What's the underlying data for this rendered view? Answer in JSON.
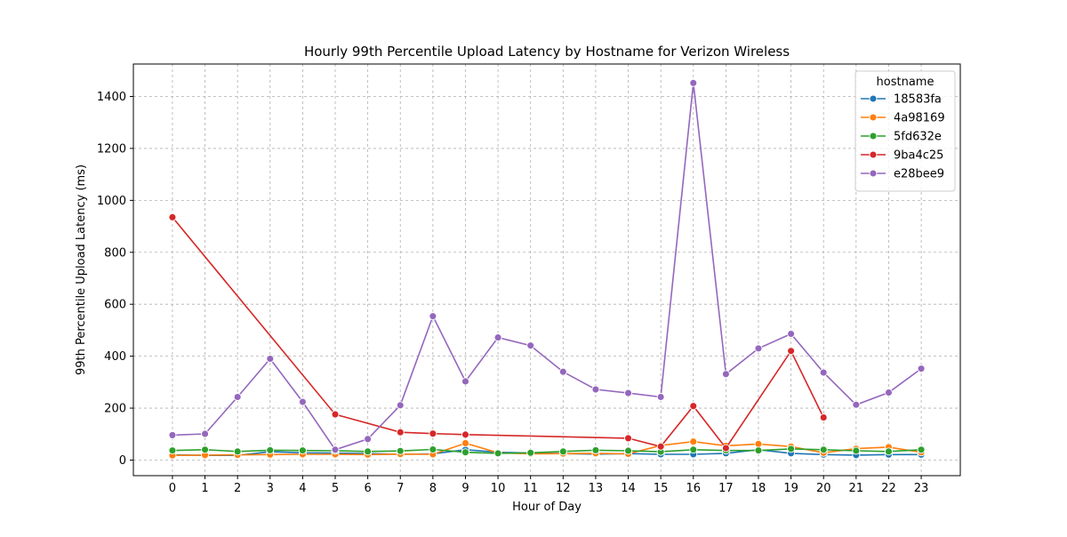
{
  "chart_data": {
    "type": "line",
    "title": "Hourly 99th Percentile Upload Latency by Hostname for Verizon Wireless",
    "xlabel": "Hour of Day",
    "ylabel": "99th Percentile Upload Latency (ms)",
    "x": [
      0,
      1,
      2,
      3,
      4,
      5,
      6,
      7,
      8,
      9,
      10,
      11,
      12,
      13,
      14,
      15,
      16,
      17,
      18,
      19,
      20,
      21,
      22,
      23
    ],
    "xlim": [
      -1.2,
      24.2
    ],
    "ylim": [
      -60,
      1525
    ],
    "yticks": [
      0,
      200,
      400,
      600,
      800,
      1000,
      1200,
      1400
    ],
    "grid": true,
    "legend": {
      "title": "hostname",
      "placement": "top-right"
    },
    "series": [
      {
        "name": "18583fa",
        "color": "#1f77b4",
        "points": [
          [
            0,
            20
          ],
          [
            1,
            18
          ],
          [
            2,
            18
          ],
          [
            3,
            32
          ],
          [
            4,
            28
          ],
          [
            5,
            27
          ],
          [
            6,
            25
          ],
          [
            7,
            22
          ],
          [
            8,
            24
          ],
          [
            9,
            40
          ],
          [
            10,
            30
          ],
          [
            11,
            27
          ],
          [
            12,
            25
          ],
          [
            13,
            23
          ],
          [
            14,
            25
          ],
          [
            15,
            22
          ],
          [
            16,
            22
          ],
          [
            17,
            26
          ],
          [
            18,
            40
          ],
          [
            19,
            26
          ],
          [
            20,
            21
          ],
          [
            21,
            19
          ],
          [
            22,
            21
          ],
          [
            23,
            21
          ]
        ]
      },
      {
        "name": "4a98169",
        "color": "#ff7f0e",
        "points": [
          [
            0,
            18
          ],
          [
            1,
            19
          ],
          [
            2,
            20
          ],
          [
            3,
            21
          ],
          [
            4,
            22
          ],
          [
            5,
            22
          ],
          [
            6,
            21
          ],
          [
            7,
            23
          ],
          [
            8,
            22
          ],
          [
            9,
            65
          ],
          [
            10,
            28
          ],
          [
            11,
            24
          ],
          [
            12,
            25
          ],
          [
            13,
            26
          ],
          [
            14,
            24
          ],
          [
            15,
            56
          ],
          [
            16,
            71
          ],
          [
            17,
            55
          ],
          [
            18,
            62
          ],
          [
            19,
            52
          ],
          [
            20,
            28
          ],
          [
            21,
            44
          ],
          [
            22,
            50
          ],
          [
            23,
            30
          ]
        ]
      },
      {
        "name": "5fd632e",
        "color": "#2ca02c",
        "points": [
          [
            0,
            37
          ],
          [
            1,
            40
          ],
          [
            2,
            33
          ],
          [
            3,
            38
          ],
          [
            4,
            37
          ],
          [
            5,
            36
          ],
          [
            6,
            33
          ],
          [
            7,
            35
          ],
          [
            8,
            41
          ],
          [
            9,
            30
          ],
          [
            10,
            26
          ],
          [
            11,
            28
          ],
          [
            12,
            33
          ],
          [
            13,
            38
          ],
          [
            14,
            36
          ],
          [
            15,
            32
          ],
          [
            16,
            40
          ],
          [
            17,
            37
          ],
          [
            18,
            37
          ],
          [
            19,
            43
          ],
          [
            20,
            40
          ],
          [
            21,
            36
          ],
          [
            22,
            33
          ],
          [
            23,
            40
          ]
        ]
      },
      {
        "name": "9ba4c25",
        "color": "#d62728",
        "points": [
          [
            0,
            935
          ],
          [
            5,
            176
          ],
          [
            7,
            107
          ],
          [
            8,
            102
          ],
          [
            9,
            98
          ],
          [
            14,
            84
          ],
          [
            15,
            52
          ],
          [
            16,
            208
          ],
          [
            17,
            46
          ],
          [
            19,
            420
          ],
          [
            20,
            164
          ]
        ]
      },
      {
        "name": "e28bee9",
        "color": "#9467bd",
        "points": [
          [
            0,
            96
          ],
          [
            1,
            101
          ],
          [
            2,
            243
          ],
          [
            3,
            390
          ],
          [
            4,
            224
          ],
          [
            5,
            40
          ],
          [
            6,
            81
          ],
          [
            7,
            211
          ],
          [
            8,
            554
          ],
          [
            9,
            303
          ],
          [
            10,
            472
          ],
          [
            11,
            441
          ],
          [
            12,
            340
          ],
          [
            13,
            272
          ],
          [
            14,
            258
          ],
          [
            15,
            243
          ],
          [
            16,
            1452
          ],
          [
            17,
            331
          ],
          [
            18,
            430
          ],
          [
            19,
            486
          ],
          [
            20,
            337
          ],
          [
            21,
            213
          ],
          [
            22,
            260
          ],
          [
            23,
            352
          ]
        ]
      }
    ]
  }
}
